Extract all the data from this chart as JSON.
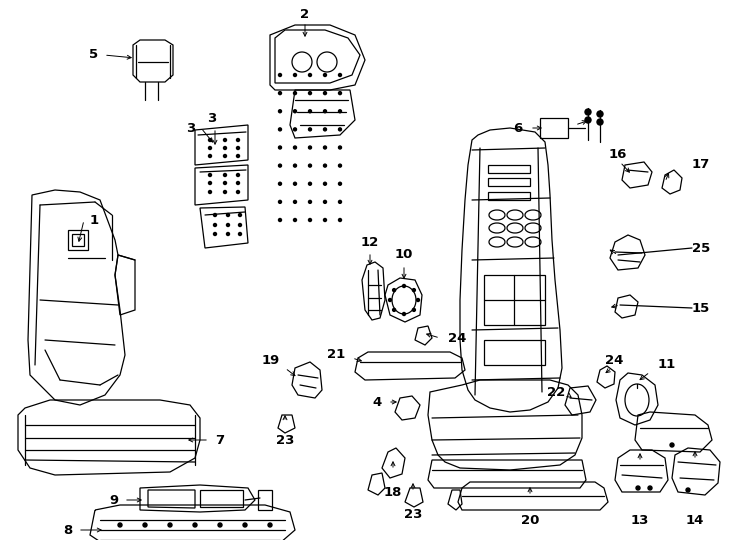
{
  "background_color": "#ffffff",
  "fig_width": 7.34,
  "fig_height": 5.4,
  "dpi": 100,
  "line_color": "#000000",
  "line_width": 0.9,
  "label_fontsize": 9.5,
  "label_fontweight": "bold",
  "arrow_lw": 0.7
}
